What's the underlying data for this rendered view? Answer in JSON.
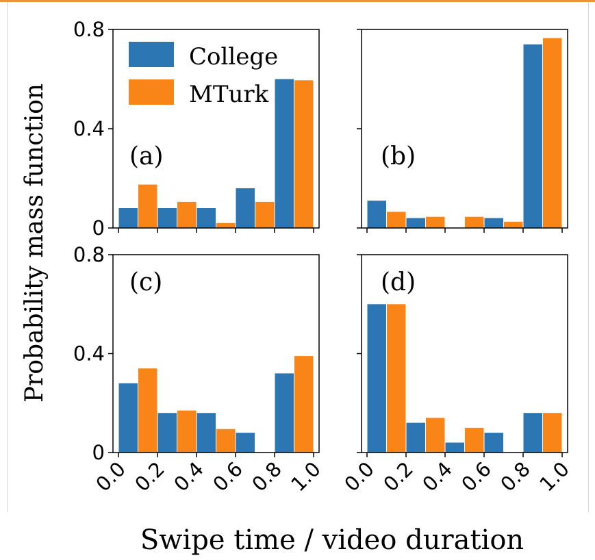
{
  "colors": {
    "college": "#2c77b3",
    "mturk": "#f98417"
  },
  "ylabel": "Probability mass function",
  "xlabel": "Swipe time / video duration",
  "legend": [
    "College",
    "MTurk"
  ],
  "chart_data": [
    {
      "panel": "(a)",
      "type": "bar",
      "categories": [
        "0.0-0.2",
        "0.2-0.4",
        "0.4-0.6",
        "0.6-0.8",
        "0.8-1.0"
      ],
      "series": [
        {
          "name": "College",
          "values": [
            0.08,
            0.08,
            0.08,
            0.16,
            0.6
          ]
        },
        {
          "name": "MTurk",
          "values": [
            0.175,
            0.105,
            0.02,
            0.105,
            0.595
          ]
        }
      ],
      "ylim": [
        0,
        0.8
      ],
      "yticks": [
        "0",
        "0.4",
        "0.8"
      ],
      "xticks": [
        "0.0",
        "0.2",
        "0.4",
        "0.6",
        "0.8",
        "1.0"
      ],
      "legend_position": "top-left"
    },
    {
      "panel": "(b)",
      "type": "bar",
      "categories": [
        "0.0-0.2",
        "0.2-0.4",
        "0.4-0.6",
        "0.6-0.8",
        "0.8-1.0"
      ],
      "series": [
        {
          "name": "College",
          "values": [
            0.11,
            0.04,
            0.0,
            0.04,
            0.74
          ]
        },
        {
          "name": "MTurk",
          "values": [
            0.065,
            0.045,
            0.045,
            0.025,
            0.765
          ]
        }
      ],
      "ylim": [
        0,
        0.8
      ],
      "yticks": [],
      "xticks": [
        "0.0",
        "0.2",
        "0.4",
        "0.6",
        "0.8",
        "1.0"
      ]
    },
    {
      "panel": "(c)",
      "type": "bar",
      "categories": [
        "0.0-0.2",
        "0.2-0.4",
        "0.4-0.6",
        "0.6-0.8",
        "0.8-1.0"
      ],
      "series": [
        {
          "name": "College",
          "values": [
            0.28,
            0.16,
            0.16,
            0.08,
            0.32
          ]
        },
        {
          "name": "MTurk",
          "values": [
            0.34,
            0.17,
            0.095,
            0.0,
            0.39
          ]
        }
      ],
      "ylim": [
        0,
        0.8
      ],
      "yticks": [
        "0",
        "0.4",
        "0.8"
      ],
      "xticks": [
        "0.0",
        "0.2",
        "0.4",
        "0.6",
        "0.8",
        "1.0"
      ]
    },
    {
      "panel": "(d)",
      "type": "bar",
      "categories": [
        "0.0-0.2",
        "0.2-0.4",
        "0.4-0.6",
        "0.6-0.8",
        "0.8-1.0"
      ],
      "series": [
        {
          "name": "College",
          "values": [
            0.6,
            0.12,
            0.04,
            0.08,
            0.16
          ]
        },
        {
          "name": "MTurk",
          "values": [
            0.6,
            0.14,
            0.1,
            0.0,
            0.16
          ]
        }
      ],
      "ylim": [
        0,
        0.8
      ],
      "yticks": [],
      "xticks": [
        "0.0",
        "0.2",
        "0.4",
        "0.6",
        "0.8",
        "1.0"
      ]
    }
  ]
}
